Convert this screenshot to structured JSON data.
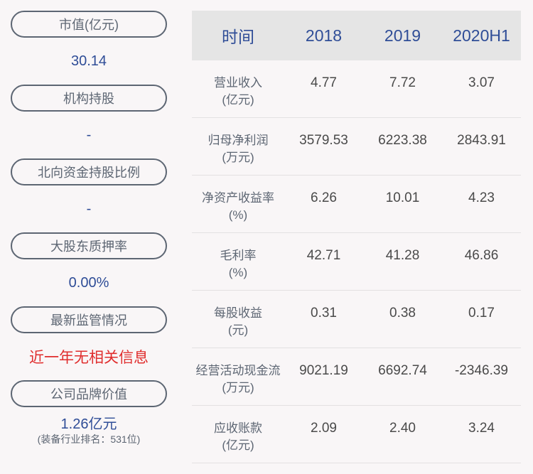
{
  "left_panel": [
    {
      "label": "市值(亿元)",
      "value": "30.14"
    },
    {
      "label": "机构持股",
      "value": "-"
    },
    {
      "label": "北向资金持股比例",
      "value": "-"
    },
    {
      "label": "大股东质押率",
      "value": "0.00%"
    },
    {
      "label": "最新监管情况",
      "value": "近一年无相关信息"
    },
    {
      "label": "公司品牌价值",
      "value": "1.26亿元",
      "sub": "(装备行业排名：531位)"
    }
  ],
  "table": {
    "headers": [
      "时间",
      "2018",
      "2019",
      "2020H1"
    ],
    "rows": [
      {
        "name": "营业收入",
        "unit": "(亿元)",
        "values": [
          "4.77",
          "7.72",
          "3.07"
        ]
      },
      {
        "name": "归母净利润",
        "unit": "(万元)",
        "values": [
          "3579.53",
          "6223.38",
          "2843.91"
        ]
      },
      {
        "name": "净资产收益率",
        "unit": "(%)",
        "values": [
          "6.26",
          "10.01",
          "4.23"
        ]
      },
      {
        "name": "毛利率",
        "unit": "(%)",
        "values": [
          "42.71",
          "41.28",
          "46.86"
        ]
      },
      {
        "name": "每股收益",
        "unit": "(元)",
        "values": [
          "0.31",
          "0.38",
          "0.17"
        ]
      },
      {
        "name": "经营活动现金流",
        "unit": "(万元)",
        "values": [
          "9021.19",
          "6692.74",
          "-2346.39"
        ]
      },
      {
        "name": "应收账款",
        "unit": "(亿元)",
        "values": [
          "2.09",
          "2.40",
          "3.24"
        ]
      }
    ]
  },
  "colors": {
    "value_blue": "#2f4d97",
    "alert_red": "#e02d2d",
    "label_gray": "#5d6673",
    "header_bg": "#e5e5e5",
    "page_bg": "#f9f6f7"
  }
}
